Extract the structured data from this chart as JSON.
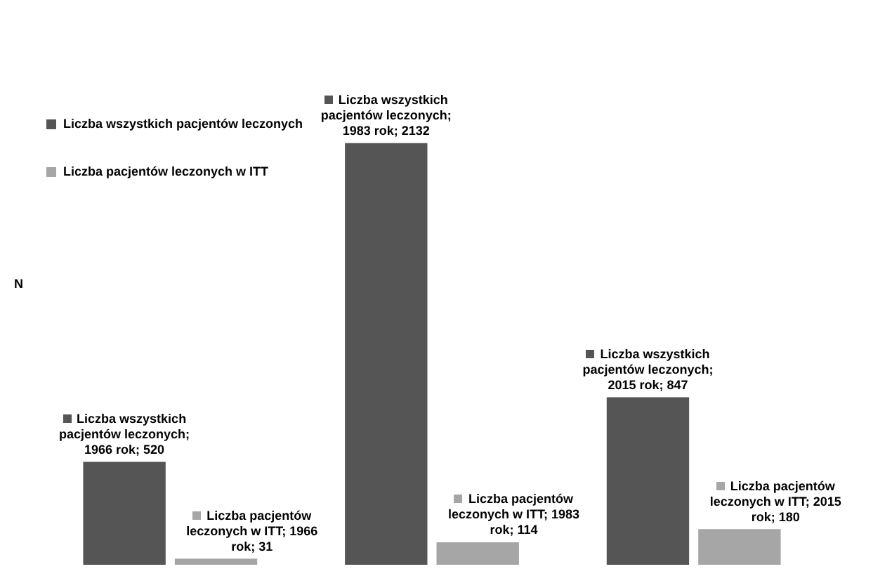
{
  "chart_data": {
    "type": "bar",
    "ylabel": "N",
    "categories": [
      null,
      null,
      null
    ],
    "legend": "top left",
    "series": [
      {
        "name": "Liczba wszystkich pacjentów leczonych",
        "color": "#555555",
        "values": [
          520,
          2132,
          847
        ],
        "value_labels": [
          "Liczba wszystkich pacjentów leczonych; 1966 rok; 520",
          "Liczba wszystkich pacjentów leczonych; 1983 rok; 2132",
          "Liczba wszystkich pacjentów leczonych; 2015 rok; 847"
        ]
      },
      {
        "name": "Liczba pacjentów leczonych w ITT",
        "color": "#a6a6a6",
        "values": [
          31,
          114,
          180
        ],
        "value_labels": [
          "Liczba pacjentów leczonych w ITT; 1966 rok; 31",
          "Liczba pacjentów leczonych w ITT; 1983 rok; 114",
          "Liczba pacjentów leczonych w ITT; 2015 rok; 180"
        ]
      }
    ]
  }
}
